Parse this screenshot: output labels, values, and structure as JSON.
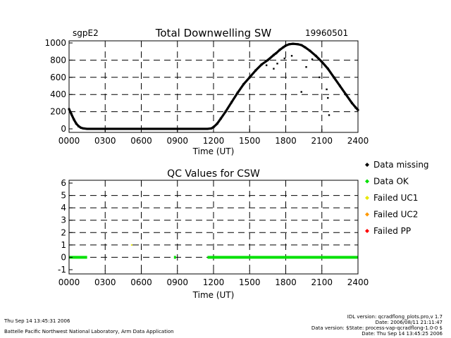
{
  "chart_data": [
    {
      "type": "scatter",
      "site": "sgpE2",
      "title": "Total Downwelling SW",
      "date": "19960501",
      "xlabel": "Time  (UT)",
      "ylabel": "",
      "xlim": [
        0,
        2400
      ],
      "ylim": [
        0,
        1000
      ],
      "x_ticks": [
        "0000",
        "0300",
        "0600",
        "0900",
        "1200",
        "1500",
        "1800",
        "2100",
        "2400"
      ],
      "y_ticks": [
        0,
        200,
        400,
        600,
        800,
        1000
      ],
      "grid": true,
      "series": [
        {
          "name": "Downwelling SW",
          "x": [
            0,
            20,
            40,
            60,
            80,
            100,
            120,
            150,
            200,
            400,
            600,
            800,
            1000,
            1150,
            1180,
            1200,
            1230,
            1260,
            1300,
            1350,
            1400,
            1450,
            1500,
            1550,
            1600,
            1650,
            1700,
            1720,
            1750,
            1780,
            1800,
            1830,
            1860,
            1900,
            1930,
            1960,
            2000,
            2050,
            2100,
            2150,
            2200,
            2250,
            2300,
            2350,
            2380,
            2400
          ],
          "y": [
            230,
            170,
            110,
            60,
            30,
            12,
            5,
            0,
            0,
            0,
            0,
            0,
            0,
            0,
            5,
            20,
            60,
            120,
            200,
            310,
            420,
            520,
            600,
            680,
            750,
            800,
            860,
            880,
            920,
            950,
            970,
            985,
            990,
            985,
            975,
            950,
            910,
            850,
            780,
            700,
            600,
            500,
            400,
            300,
            250,
            220
          ]
        }
      ],
      "outliers": {
        "x": [
          1640,
          1700,
          1730,
          1790,
          1850,
          1930,
          1970,
          2020,
          2080,
          2140,
          2150,
          2160
        ],
        "y": [
          740,
          700,
          760,
          820,
          850,
          430,
          720,
          810,
          600,
          460,
          360,
          160
        ]
      }
    },
    {
      "type": "scatter",
      "title": "QC Values for CSW",
      "xlabel": "Time  (UT)",
      "ylabel": "",
      "xlim": [
        0,
        2400
      ],
      "ylim": [
        -1,
        6
      ],
      "x_ticks": [
        "0000",
        "0300",
        "0600",
        "0900",
        "1200",
        "1500",
        "1800",
        "2100",
        "2400"
      ],
      "y_ticks": [
        -1,
        0,
        1,
        2,
        3,
        4,
        5,
        6
      ],
      "grid": true,
      "legend": [
        {
          "label": "Data missing",
          "color": "#000000"
        },
        {
          "label": "Data OK",
          "color": "#00e000"
        },
        {
          "label": "Failed UC1",
          "color": "#e8e800"
        },
        {
          "label": "Failed UC2",
          "color": "#ff9900"
        },
        {
          "label": "Failed PP",
          "color": "#ff0000"
        }
      ],
      "ok_segments": [
        [
          0,
          150
        ],
        [
          1150,
          2400
        ]
      ],
      "ok_points": [
        880
      ],
      "uc1_points": [
        [
          520,
          1
        ]
      ]
    }
  ],
  "footer": {
    "left_timestamp": "Thu Sep 14 13:45:31 2006",
    "left_org": "Battelle Pacific Northwest National Laboratory, Arm Data Application",
    "right_line1": "IDL version: qcradflong_plots.pro,v 1.7",
    "right_line2": "Date: 2006/08/11 21:11:47",
    "right_line3": "Data version: $State: process-vap-qcradflong-1.0-0 $",
    "right_line4": "Date: Thu Sep 14 13:45:25 2006"
  }
}
